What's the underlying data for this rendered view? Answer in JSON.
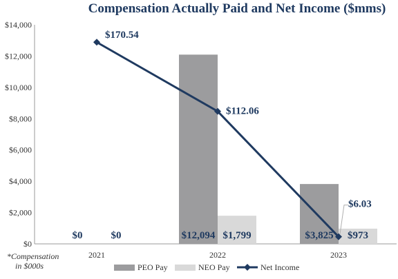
{
  "chart_data": {
    "type": "bar",
    "title": "Compensation Actually Paid and Net Income ($mms)",
    "categories": [
      "2021",
      "2022",
      "2023"
    ],
    "ylim": [
      0,
      14000
    ],
    "yticks": [
      {
        "value": 0,
        "label": "$0"
      },
      {
        "value": 2000,
        "label": "$2,000"
      },
      {
        "value": 4000,
        "label": "$4,000"
      },
      {
        "value": 6000,
        "label": "$6,000"
      },
      {
        "value": 8000,
        "label": "$8,000"
      },
      {
        "value": 10000,
        "label": "$10,000"
      },
      {
        "value": 12000,
        "label": "$12,000"
      },
      {
        "value": 14000,
        "label": "$14,000"
      }
    ],
    "grid": false,
    "legend_position": "bottom",
    "series": [
      {
        "name": "PEO Pay",
        "type": "bar",
        "color": "#9c9c9e",
        "values": [
          0,
          12094,
          3825
        ],
        "labels": [
          "$0",
          "$12,094",
          "$3,825"
        ]
      },
      {
        "name": "NEO Pay",
        "type": "bar",
        "color": "#d9d9d9",
        "values": [
          0,
          1799,
          973
        ],
        "labels": [
          "$0",
          "$1,799",
          "$973"
        ]
      },
      {
        "name": "Net Income",
        "type": "line",
        "color": "#1f3a60",
        "marker": "diamond",
        "values": [
          170.54,
          112.06,
          6.03
        ],
        "labels": [
          "$170.54",
          "$112.06",
          "$6.03"
        ]
      }
    ],
    "footnote": [
      "*Compensation",
      "in $000s"
    ]
  }
}
